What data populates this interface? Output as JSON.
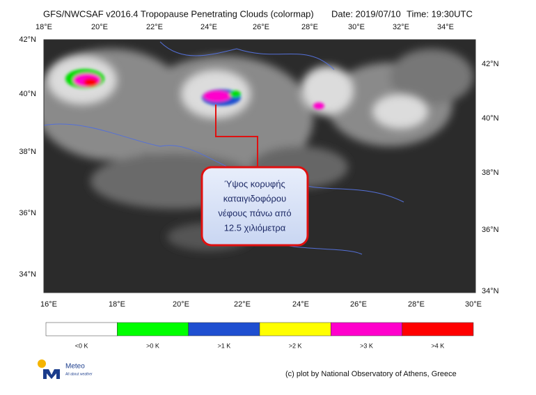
{
  "header": {
    "title": "GFS/NWCSAF v2016.4 Tropopause Penetrating Clouds (colormap)",
    "date": "Date: 2019/07/10",
    "time": "Time: 19:30UTC"
  },
  "map": {
    "top_labels": [
      "18°E",
      "20°E",
      "22°E",
      "24°E",
      "26°E",
      "28°E",
      "30°E",
      "32°E",
      "34°E"
    ],
    "bottom_labels": [
      "16°E",
      "18°E",
      "20°E",
      "22°E",
      "24°E",
      "26°E",
      "28°E",
      "30°E"
    ],
    "left_labels": [
      "42°N",
      "40°N",
      "38°N",
      "36°N",
      "34°N"
    ],
    "right_labels": [
      "42°N",
      "40°N",
      "38°N",
      "36°N",
      "34°N"
    ]
  },
  "callout": {
    "lines": [
      "Ύψος κορυφής",
      "καταιγιδοφόρου",
      "νέφους πάνω από",
      "12.5 χιλιόμετρα"
    ]
  },
  "colorbar": [
    {
      "label": "<0 K",
      "color": "#ffffff"
    },
    {
      "label": ">0 K",
      "color": "#00ff00"
    },
    {
      "label": ">1 K",
      "color": "#1f4fd0"
    },
    {
      "label": ">2 K",
      "color": "#ffff00"
    },
    {
      "label": ">3 K",
      "color": "#ff00cc"
    },
    {
      "label": ">4 K",
      "color": "#ff0000"
    }
  ],
  "logo": {
    "name": "Meteo",
    "tagline": "All about weather"
  },
  "footer": "(c) plot by National Observatory of Athens, Greece"
}
